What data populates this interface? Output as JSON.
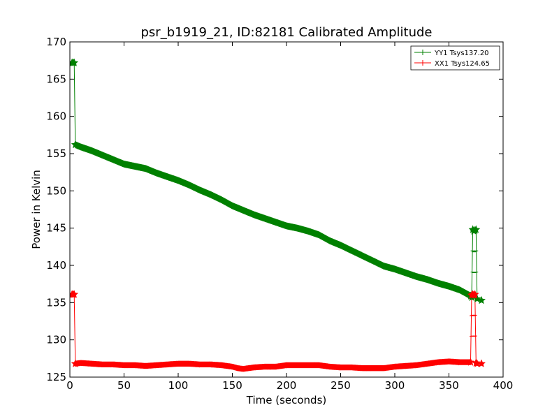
{
  "chart_data": {
    "type": "line",
    "title": "psr_b1919_21, ID:82181 Calibrated Amplitude",
    "xlabel": "Time (seconds)",
    "ylabel": "Power in Kelvin",
    "xlim": [
      0,
      400
    ],
    "ylim": [
      125,
      170
    ],
    "xticks": [
      0,
      50,
      100,
      150,
      200,
      250,
      300,
      350,
      400
    ],
    "yticks": [
      125,
      130,
      135,
      140,
      145,
      150,
      155,
      160,
      165,
      170
    ],
    "xtick_labels": [
      "0",
      "50",
      "100",
      "150",
      "200",
      "250",
      "300",
      "350",
      "400"
    ],
    "ytick_labels": [
      "125",
      "130",
      "135",
      "140",
      "145",
      "150",
      "155",
      "160",
      "165",
      "170"
    ],
    "grid": false,
    "legend_position": "top-right",
    "series": [
      {
        "name": "YY1 Tsys137.20",
        "color": "#008000",
        "noise": 0.35,
        "x": [
          2,
          3,
          4,
          5,
          10,
          20,
          30,
          40,
          50,
          60,
          70,
          80,
          90,
          100,
          110,
          120,
          130,
          140,
          150,
          160,
          170,
          180,
          190,
          200,
          210,
          220,
          230,
          240,
          250,
          260,
          270,
          280,
          290,
          300,
          310,
          320,
          330,
          340,
          350,
          360,
          370,
          371,
          372,
          373,
          374,
          375,
          376,
          380
        ],
        "y": [
          167.2,
          167.2,
          167.2,
          156.2,
          155.9,
          155.4,
          154.8,
          154.2,
          153.6,
          153.3,
          153.0,
          152.4,
          151.9,
          151.4,
          150.8,
          150.1,
          149.5,
          148.8,
          148.0,
          147.4,
          146.8,
          146.3,
          145.8,
          145.3,
          145.0,
          144.6,
          144.1,
          143.3,
          142.7,
          142.0,
          141.3,
          140.6,
          139.9,
          139.5,
          139.0,
          138.5,
          138.1,
          137.6,
          137.2,
          136.7,
          135.9,
          135.7,
          144.8,
          144.6,
          144.7,
          144.8,
          135.5,
          135.3
        ]
      },
      {
        "name": "XX1 Tsys124.65",
        "color": "#ff0000",
        "noise": 0.3,
        "x": [
          2,
          3,
          4,
          5,
          10,
          20,
          30,
          40,
          50,
          60,
          70,
          80,
          90,
          100,
          110,
          120,
          130,
          140,
          150,
          155,
          160,
          170,
          180,
          190,
          200,
          210,
          220,
          230,
          240,
          250,
          260,
          270,
          280,
          290,
          300,
          310,
          320,
          330,
          340,
          350,
          360,
          370,
          371,
          372,
          373,
          374,
          375,
          376,
          380
        ],
        "y": [
          136.1,
          136.1,
          136.1,
          126.8,
          126.9,
          126.8,
          126.7,
          126.7,
          126.6,
          126.6,
          126.5,
          126.6,
          126.7,
          126.8,
          126.8,
          126.7,
          126.7,
          126.6,
          126.4,
          126.2,
          126.1,
          126.3,
          126.4,
          126.4,
          126.6,
          126.6,
          126.6,
          126.6,
          126.4,
          126.3,
          126.3,
          126.2,
          126.2,
          126.2,
          126.4,
          126.5,
          126.6,
          126.8,
          127.0,
          127.1,
          127.0,
          127.0,
          136.0,
          136.1,
          136.0,
          136.1,
          126.9,
          126.8,
          126.8
        ]
      }
    ]
  }
}
